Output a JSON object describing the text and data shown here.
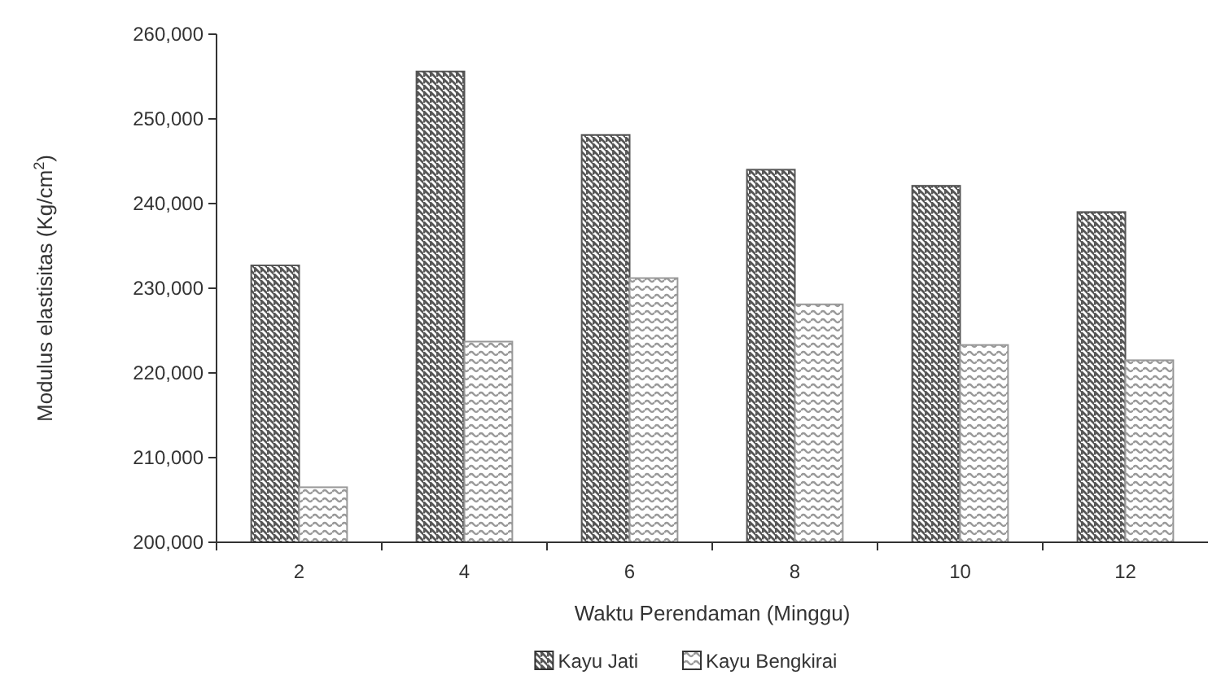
{
  "chart_data": {
    "type": "bar",
    "xlabel": "Waktu Perendaman (Minggu)",
    "ylabel": "Modulus elastisitas (Kg/cm$^{2}$)",
    "categories": [
      "2",
      "4",
      "6",
      "8",
      "10",
      "12"
    ],
    "series": [
      {
        "name": "Kayu Jati",
        "color": "#555555",
        "values": [
          232700,
          255600,
          248100,
          244000,
          242100,
          239000
        ]
      },
      {
        "name": "Kayu Bengkirai",
        "color": "#999999",
        "values": [
          206500,
          223700,
          231200,
          228100,
          223300,
          221500
        ]
      }
    ],
    "ylim": [
      200000,
      260000
    ],
    "yticks": [
      {
        "value": 200000,
        "label": "200,000"
      },
      {
        "value": 210000,
        "label": "210,000"
      },
      {
        "value": 220000,
        "label": "220,000"
      },
      {
        "value": 230000,
        "label": "230,000"
      },
      {
        "value": 240000,
        "label": "240,000"
      },
      {
        "value": 250000,
        "label": "250,000"
      },
      {
        "value": 260000,
        "label": "260,000"
      }
    ],
    "grid": false,
    "legend": "bottom"
  }
}
